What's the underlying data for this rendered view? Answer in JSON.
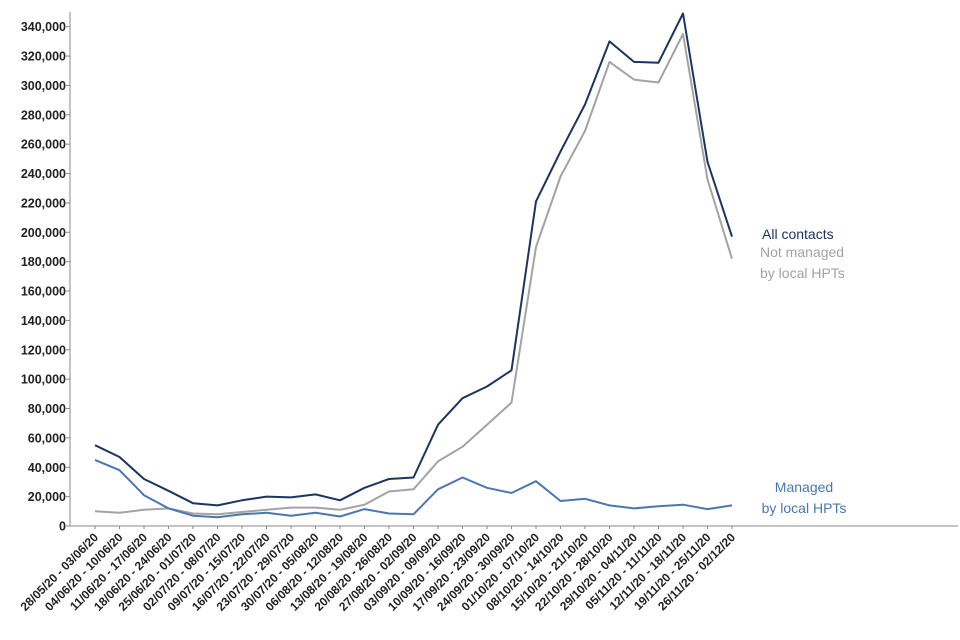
{
  "chart_data": {
    "type": "line",
    "title": "",
    "xlabel": "",
    "ylabel": "",
    "ylim": [
      0,
      350000
    ],
    "yticks": [
      0,
      20000,
      40000,
      60000,
      80000,
      100000,
      120000,
      140000,
      160000,
      180000,
      200000,
      220000,
      240000,
      260000,
      280000,
      300000,
      320000,
      340000
    ],
    "ytick_labels": [
      "0",
      "20,000",
      "40,000",
      "60,000",
      "80,000",
      "100,000",
      "120,000",
      "140,000",
      "160,000",
      "180,000",
      "200,000",
      "220,000",
      "240,000",
      "260,000",
      "280,000",
      "300,000",
      "320,000",
      "340,000"
    ],
    "grid": false,
    "legend": "direct labels at line ends",
    "categories": [
      "28/05/20 - 03/06/20",
      "04/06/20 - 10/06/20",
      "11/06/20 - 17/06/20",
      "18/06/20 - 24/06/20",
      "25/06/20 - 01/07/20",
      "02/07/20 - 08/07/20",
      "09/07/20 - 15/07/20",
      "16/07/20 - 22/07/20",
      "23/07/20 - 29/07/20",
      "30/07/20 - 05/08/20",
      "06/08/20 - 12/08/20",
      "13/08/20 - 19/08/20",
      "20/08/20 - 26/08/20",
      "27/08/20 - 02/09/20",
      "03/09/20 - 09/09/20",
      "10/09/20 - 16/09/20",
      "17/09/20 - 23/09/20",
      "24/09/20 - 30/09/20",
      "01/10/20 - 07/10/20",
      "08/10/20 - 14/10/20",
      "15/10/20 - 21/10/20",
      "22/10/20 - 28/10/20",
      "29/10/20 - 04/11/20",
      "05/11/20 - 11/11/20",
      "12/11/20 - 18/11/20",
      "19/11/20 - 25/11/20",
      "26/11/20 - 02/12/20"
    ],
    "series": [
      {
        "name": "All contacts",
        "label_lines": [
          "All contacts"
        ],
        "color": "#1b3560",
        "values": [
          55000,
          47000,
          32000,
          24000,
          15500,
          14000,
          17500,
          20000,
          19500,
          21500,
          17500,
          26000,
          32000,
          33000,
          69000,
          87000,
          95000,
          106000,
          221000,
          255000,
          287000,
          330000,
          316000,
          315500,
          349000,
          248000,
          197000
        ]
      },
      {
        "name": "Not managed by local HPTs",
        "label_lines": [
          "Not managed",
          "by local HPTs"
        ],
        "color": "#a3a3a3",
        "values": [
          10000,
          9000,
          11000,
          12000,
          8500,
          8000,
          9500,
          11000,
          12500,
          12500,
          11000,
          14500,
          23500,
          25000,
          44000,
          54000,
          69000,
          84000,
          190000,
          238000,
          269000,
          316000,
          304000,
          302000,
          335000,
          236000,
          182000
        ]
      },
      {
        "name": "Managed by local HPTs",
        "label_lines": [
          "Managed",
          "by local HPTs"
        ],
        "color": "#4a77b4",
        "values": [
          45000,
          38000,
          21000,
          12000,
          7000,
          6000,
          8000,
          9000,
          7000,
          9000,
          6500,
          11500,
          8500,
          8000,
          25000,
          33000,
          26000,
          22500,
          30500,
          17000,
          18500,
          14000,
          12000,
          13500,
          14500,
          11500,
          14000
        ]
      }
    ]
  }
}
